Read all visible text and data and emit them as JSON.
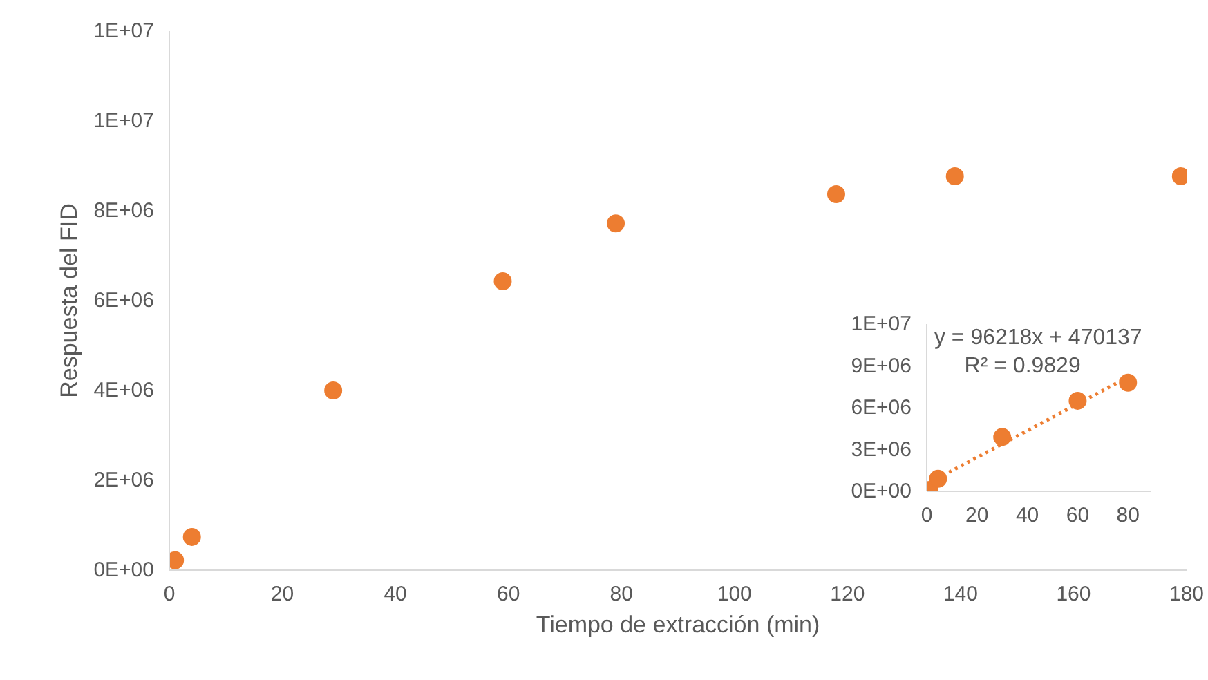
{
  "chart_data": [
    {
      "type": "scatter",
      "xlabel": "Tiempo de extracción (min)",
      "ylabel": "Respuesta del FID",
      "x": [
        1,
        4,
        29,
        59,
        79,
        118,
        139,
        179
      ],
      "series": [
        {
          "color": "#ed7d31",
          "values": [
            220000,
            740000,
            4000000,
            6430000,
            7720000,
            8370000,
            8770000,
            8770000
          ]
        }
      ],
      "xlim": [
        0,
        180
      ],
      "xticks": [
        0,
        20,
        40,
        60,
        80,
        100,
        120,
        140,
        160,
        180
      ],
      "ylim": [
        0,
        12000000
      ],
      "yticks": [
        {
          "value": 0,
          "label": "0E+00"
        },
        {
          "value": 2000000,
          "label": "2E+06"
        },
        {
          "value": 4000000,
          "label": "4E+06"
        },
        {
          "value": 6000000,
          "label": "6E+06"
        },
        {
          "value": 8000000,
          "label": "8E+06"
        },
        {
          "value": 10000000,
          "label": "1E+07"
        },
        {
          "value": 12000000,
          "label": "1E+07"
        }
      ],
      "grid": false,
      "marker": "circle"
    },
    {
      "type": "scatter",
      "annotations": [
        "y = 96218x + 470137",
        "R² = 0.9829"
      ],
      "series": [
        {
          "type": "scatter",
          "color": "#ed7d31",
          "x": [
            1,
            4.5,
            30,
            60,
            80
          ],
          "values": [
            100000,
            900000,
            3900000,
            6500000,
            7800000
          ]
        },
        {
          "type": "line",
          "color": "#ed7d31",
          "line_style": "dotted",
          "marker": "none",
          "x": [
            4,
            80
          ],
          "values": [
            900000,
            8200000
          ]
        }
      ],
      "xlim": [
        0,
        89
      ],
      "xticks": [
        0,
        20,
        40,
        60,
        80
      ],
      "ylim": [
        0,
        12000000
      ],
      "yticks": [
        {
          "value": 0,
          "label": "0E+00"
        },
        {
          "value": 3000000,
          "label": "3E+06"
        },
        {
          "value": 6000000,
          "label": "6E+06"
        },
        {
          "value": 9000000,
          "label": "9E+06"
        },
        {
          "value": 12000000,
          "label": "1E+07"
        }
      ],
      "grid": false,
      "marker": "circle"
    }
  ]
}
